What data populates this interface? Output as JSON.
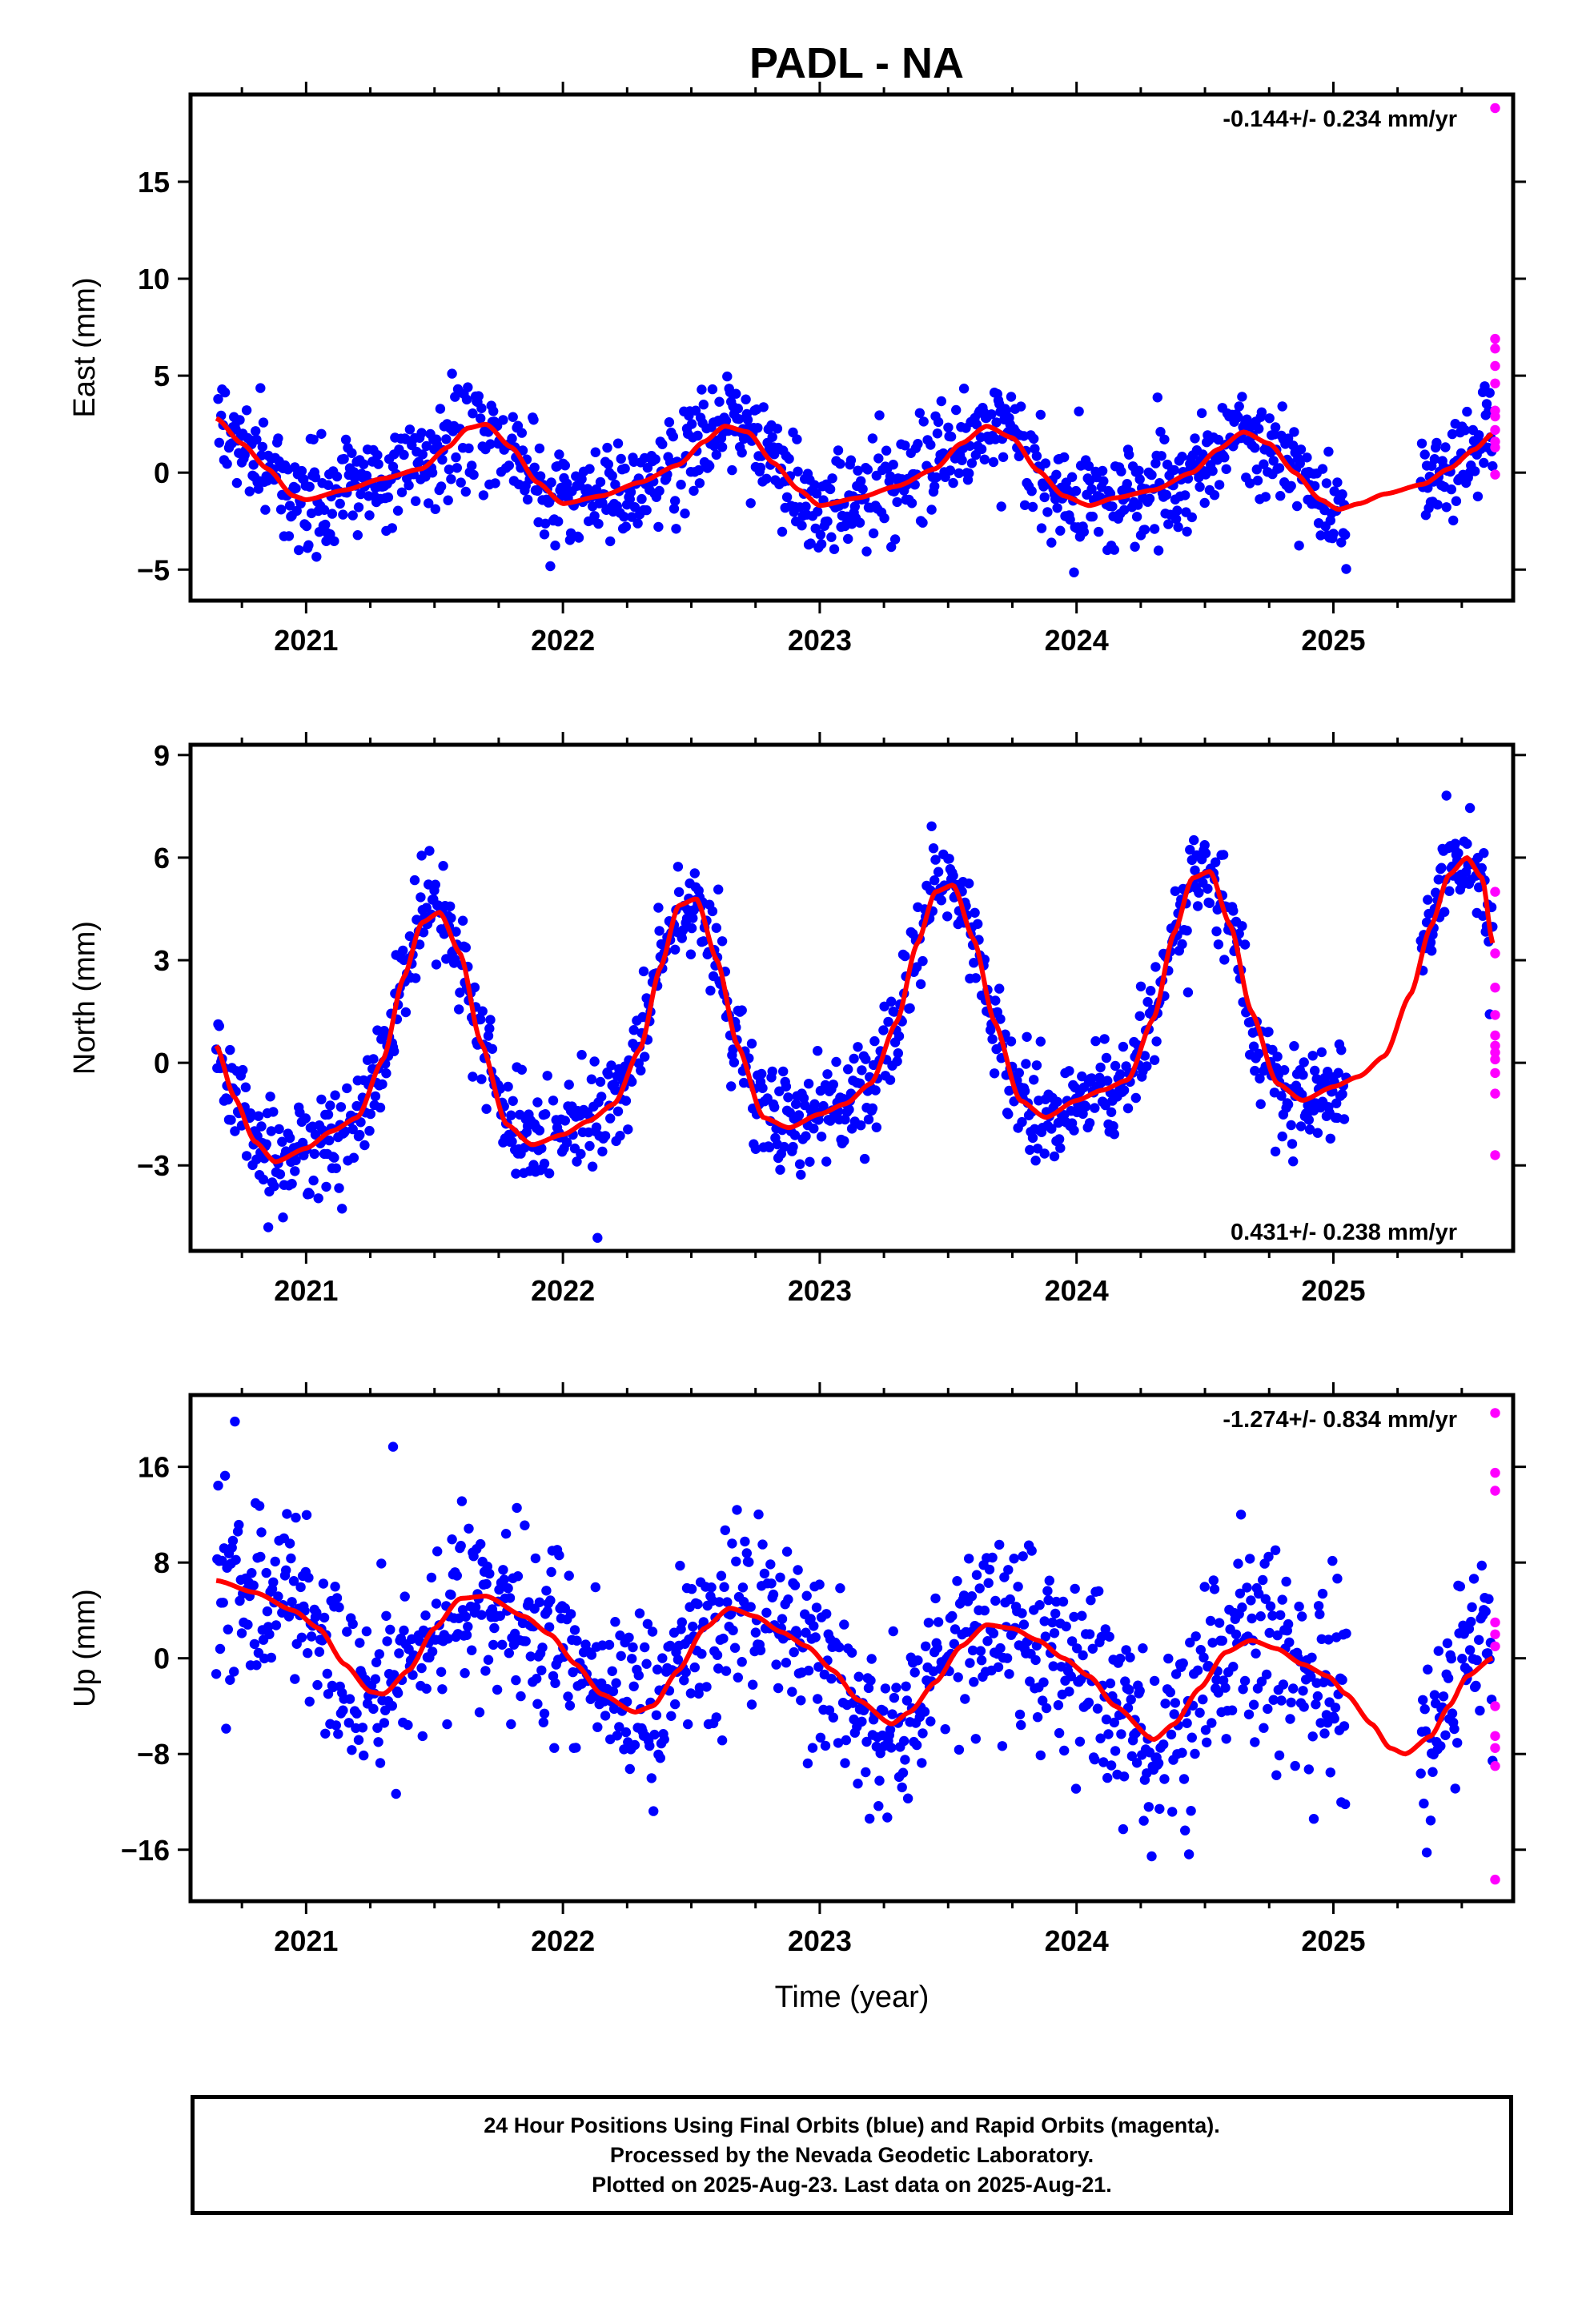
{
  "title": "PADL - NA",
  "colors": {
    "final": "#0000ff",
    "rapid": "#ff00ff",
    "model": "#ff0000",
    "frame": "#000000"
  },
  "footer": {
    "line1": "24 Hour Positions Using Final Orbits (blue) and Rapid Orbits (magenta).",
    "line2": "Processed by the Nevada Geodetic Laboratory.",
    "line3": "Plotted on 2025-Aug-23. Last data on 2025-Aug-21."
  },
  "chart_data": [
    {
      "type": "scatter",
      "ylabel": "East (mm)",
      "xlabel": "",
      "rate_label": "-0.144+/- 0.234 mm/yr",
      "rate_position": "top-right",
      "xlim": [
        2020.55,
        2025.7
      ],
      "ylim": [
        -6.6,
        19.5
      ],
      "xticks": [
        2021,
        2022,
        2023,
        2024,
        2025
      ],
      "yticks": [
        -5,
        0,
        5,
        10,
        15
      ],
      "grid": false,
      "final_orbits_series": {
        "start": 2020.65,
        "end": 2025.62,
        "count": 1300,
        "gap": [
          2025.05,
          2025.34
        ],
        "model_anchors": [
          [
            2020.65,
            2.8
          ],
          [
            2020.75,
            1.5
          ],
          [
            2020.85,
            0.2
          ],
          [
            2020.95,
            -1.2
          ],
          [
            2021.0,
            -1.4
          ],
          [
            2021.15,
            -0.9
          ],
          [
            2021.3,
            -0.3
          ],
          [
            2021.45,
            0.2
          ],
          [
            2021.55,
            1.3
          ],
          [
            2021.63,
            2.3
          ],
          [
            2021.7,
            2.5
          ],
          [
            2021.8,
            1.3
          ],
          [
            2021.9,
            -0.5
          ],
          [
            2022.0,
            -1.6
          ],
          [
            2022.15,
            -1.2
          ],
          [
            2022.3,
            -0.5
          ],
          [
            2022.45,
            0.4
          ],
          [
            2022.55,
            1.6
          ],
          [
            2022.63,
            2.4
          ],
          [
            2022.72,
            2.1
          ],
          [
            2022.82,
            0.5
          ],
          [
            2022.92,
            -0.9
          ],
          [
            2023.0,
            -1.7
          ],
          [
            2023.15,
            -1.3
          ],
          [
            2023.3,
            -0.7
          ],
          [
            2023.45,
            0.2
          ],
          [
            2023.55,
            1.5
          ],
          [
            2023.65,
            2.4
          ],
          [
            2023.75,
            1.8
          ],
          [
            2023.85,
            0.1
          ],
          [
            2023.95,
            -1.2
          ],
          [
            2024.05,
            -1.7
          ],
          [
            2024.15,
            -1.3
          ],
          [
            2024.3,
            -0.9
          ],
          [
            2024.45,
            0.0
          ],
          [
            2024.55,
            1.2
          ],
          [
            2024.65,
            2.1
          ],
          [
            2024.75,
            1.5
          ],
          [
            2024.85,
            0.0
          ],
          [
            2024.95,
            -1.4
          ],
          [
            2025.02,
            -1.9
          ],
          [
            2025.1,
            -1.6
          ],
          [
            2025.2,
            -1.1
          ],
          [
            2025.35,
            -0.6
          ],
          [
            2025.45,
            0.2
          ],
          [
            2025.55,
            1.2
          ],
          [
            2025.62,
            2.0
          ]
        ],
        "scatter_sd": 1.3
      },
      "rapid_orbits": [
        {
          "x": 2025.63,
          "y": 18.8
        },
        {
          "x": 2025.63,
          "y": 6.9
        },
        {
          "x": 2025.63,
          "y": 6.4
        },
        {
          "x": 2025.63,
          "y": 5.5
        },
        {
          "x": 2025.63,
          "y": 4.6
        },
        {
          "x": 2025.63,
          "y": 3.2
        },
        {
          "x": 2025.63,
          "y": 2.9
        },
        {
          "x": 2025.63,
          "y": 2.2
        },
        {
          "x": 2025.63,
          "y": 1.6
        },
        {
          "x": 2025.63,
          "y": 1.3
        },
        {
          "x": 2025.63,
          "y": -0.1
        }
      ]
    },
    {
      "type": "scatter",
      "ylabel": "North (mm)",
      "xlabel": "",
      "rate_label": "0.431+/- 0.238 mm/yr",
      "rate_position": "bottom-right",
      "xlim": [
        2020.55,
        2025.7
      ],
      "ylim": [
        -5.5,
        9.3
      ],
      "xticks": [
        2021,
        2022,
        2023,
        2024,
        2025
      ],
      "yticks": [
        -3,
        0,
        3,
        6,
        9
      ],
      "grid": false,
      "final_orbits_series": {
        "start": 2020.65,
        "end": 2025.62,
        "count": 1300,
        "gap": [
          2025.05,
          2025.34
        ],
        "model_anchors": [
          [
            2020.65,
            0.5
          ],
          [
            2020.72,
            -1.0
          ],
          [
            2020.8,
            -2.3
          ],
          [
            2020.88,
            -2.9
          ],
          [
            2021.0,
            -2.5
          ],
          [
            2021.1,
            -2.0
          ],
          [
            2021.2,
            -1.6
          ],
          [
            2021.3,
            0.1
          ],
          [
            2021.38,
            2.5
          ],
          [
            2021.45,
            4.1
          ],
          [
            2021.52,
            4.4
          ],
          [
            2021.6,
            3.2
          ],
          [
            2021.68,
            0.6
          ],
          [
            2021.78,
            -1.8
          ],
          [
            2021.88,
            -2.4
          ],
          [
            2022.0,
            -2.1
          ],
          [
            2022.1,
            -1.7
          ],
          [
            2022.2,
            -1.2
          ],
          [
            2022.3,
            0.4
          ],
          [
            2022.38,
            2.8
          ],
          [
            2022.45,
            4.6
          ],
          [
            2022.52,
            4.8
          ],
          [
            2022.6,
            3.0
          ],
          [
            2022.68,
            0.5
          ],
          [
            2022.78,
            -1.6
          ],
          [
            2022.88,
            -1.9
          ],
          [
            2023.0,
            -1.5
          ],
          [
            2023.1,
            -1.2
          ],
          [
            2023.2,
            -0.6
          ],
          [
            2023.3,
            1.2
          ],
          [
            2023.38,
            3.5
          ],
          [
            2023.45,
            5.0
          ],
          [
            2023.52,
            5.2
          ],
          [
            2023.6,
            3.6
          ],
          [
            2023.68,
            1.2
          ],
          [
            2023.78,
            -1.1
          ],
          [
            2023.88,
            -1.6
          ],
          [
            2024.0,
            -1.1
          ],
          [
            2024.1,
            -0.8
          ],
          [
            2024.2,
            -0.5
          ],
          [
            2024.3,
            1.3
          ],
          [
            2024.38,
            3.8
          ],
          [
            2024.45,
            5.4
          ],
          [
            2024.52,
            5.6
          ],
          [
            2024.6,
            4.0
          ],
          [
            2024.68,
            1.5
          ],
          [
            2024.78,
            -0.6
          ],
          [
            2024.88,
            -1.1
          ],
          [
            2025.0,
            -0.7
          ],
          [
            2025.1,
            -0.4
          ],
          [
            2025.2,
            0.2
          ],
          [
            2025.3,
            2.0
          ],
          [
            2025.38,
            4.0
          ],
          [
            2025.45,
            5.5
          ],
          [
            2025.52,
            6.0
          ],
          [
            2025.58,
            5.4
          ],
          [
            2025.62,
            3.5
          ]
        ],
        "scatter_sd": 0.75
      },
      "rapid_orbits": [
        {
          "x": 2025.63,
          "y": 5.0
        },
        {
          "x": 2025.63,
          "y": 3.2
        },
        {
          "x": 2025.63,
          "y": 2.2
        },
        {
          "x": 2025.63,
          "y": 1.4
        },
        {
          "x": 2025.63,
          "y": 0.8
        },
        {
          "x": 2025.63,
          "y": 0.5
        },
        {
          "x": 2025.63,
          "y": 0.3
        },
        {
          "x": 2025.63,
          "y": 0.1
        },
        {
          "x": 2025.63,
          "y": -0.3
        },
        {
          "x": 2025.63,
          "y": -0.9
        },
        {
          "x": 2025.63,
          "y": -2.7
        }
      ]
    },
    {
      "type": "scatter",
      "ylabel": "Up (mm)",
      "xlabel": "Time (year)",
      "rate_label": "-1.274+/- 0.834 mm/yr",
      "rate_position": "top-right",
      "xlim": [
        2020.55,
        2025.7
      ],
      "ylim": [
        -20.3,
        22.0
      ],
      "xticks": [
        2021,
        2022,
        2023,
        2024,
        2025
      ],
      "yticks": [
        -16,
        -8,
        0,
        8,
        16
      ],
      "grid": false,
      "final_orbits_series": {
        "start": 2020.65,
        "end": 2025.62,
        "count": 1300,
        "gap": [
          2025.05,
          2025.34
        ],
        "model_anchors": [
          [
            2020.65,
            6.5
          ],
          [
            2020.8,
            5.5
          ],
          [
            2020.95,
            4.0
          ],
          [
            2021.05,
            2.5
          ],
          [
            2021.15,
            -0.5
          ],
          [
            2021.25,
            -2.8
          ],
          [
            2021.3,
            -3.0
          ],
          [
            2021.4,
            -1.0
          ],
          [
            2021.5,
            2.5
          ],
          [
            2021.6,
            5.0
          ],
          [
            2021.7,
            5.2
          ],
          [
            2021.85,
            3.5
          ],
          [
            2021.95,
            2.0
          ],
          [
            2022.05,
            -0.5
          ],
          [
            2022.15,
            -3.0
          ],
          [
            2022.28,
            -4.5
          ],
          [
            2022.35,
            -4.0
          ],
          [
            2022.45,
            -1.0
          ],
          [
            2022.55,
            2.5
          ],
          [
            2022.65,
            4.2
          ],
          [
            2022.75,
            3.5
          ],
          [
            2022.85,
            2.2
          ],
          [
            2022.95,
            1.0
          ],
          [
            2023.05,
            -1.0
          ],
          [
            2023.15,
            -3.5
          ],
          [
            2023.28,
            -5.5
          ],
          [
            2023.35,
            -4.5
          ],
          [
            2023.45,
            -2.0
          ],
          [
            2023.55,
            1.0
          ],
          [
            2023.65,
            2.8
          ],
          [
            2023.75,
            2.5
          ],
          [
            2023.85,
            1.5
          ],
          [
            2023.95,
            0.0
          ],
          [
            2024.05,
            -1.5
          ],
          [
            2024.15,
            -4.0
          ],
          [
            2024.3,
            -6.8
          ],
          [
            2024.38,
            -5.5
          ],
          [
            2024.48,
            -2.5
          ],
          [
            2024.58,
            0.5
          ],
          [
            2024.68,
            1.5
          ],
          [
            2024.78,
            0.8
          ],
          [
            2024.88,
            -0.5
          ],
          [
            2024.98,
            -1.5
          ],
          [
            2025.05,
            -3.0
          ],
          [
            2025.15,
            -5.5
          ],
          [
            2025.22,
            -7.5
          ],
          [
            2025.28,
            -8.0
          ],
          [
            2025.38,
            -6.5
          ],
          [
            2025.45,
            -4.0
          ],
          [
            2025.52,
            -1.5
          ],
          [
            2025.62,
            0.0
          ]
        ],
        "scatter_sd": 3.8
      },
      "rapid_orbits": [
        {
          "x": 2025.63,
          "y": 20.5
        },
        {
          "x": 2025.63,
          "y": 15.5
        },
        {
          "x": 2025.63,
          "y": 14.0
        },
        {
          "x": 2025.63,
          "y": 3.0
        },
        {
          "x": 2025.63,
          "y": 2.0
        },
        {
          "x": 2025.63,
          "y": 1.0
        },
        {
          "x": 2025.63,
          "y": -4.0
        },
        {
          "x": 2025.63,
          "y": -6.5
        },
        {
          "x": 2025.63,
          "y": -7.5
        },
        {
          "x": 2025.63,
          "y": -9.0
        },
        {
          "x": 2025.63,
          "y": -18.5
        }
      ]
    }
  ]
}
